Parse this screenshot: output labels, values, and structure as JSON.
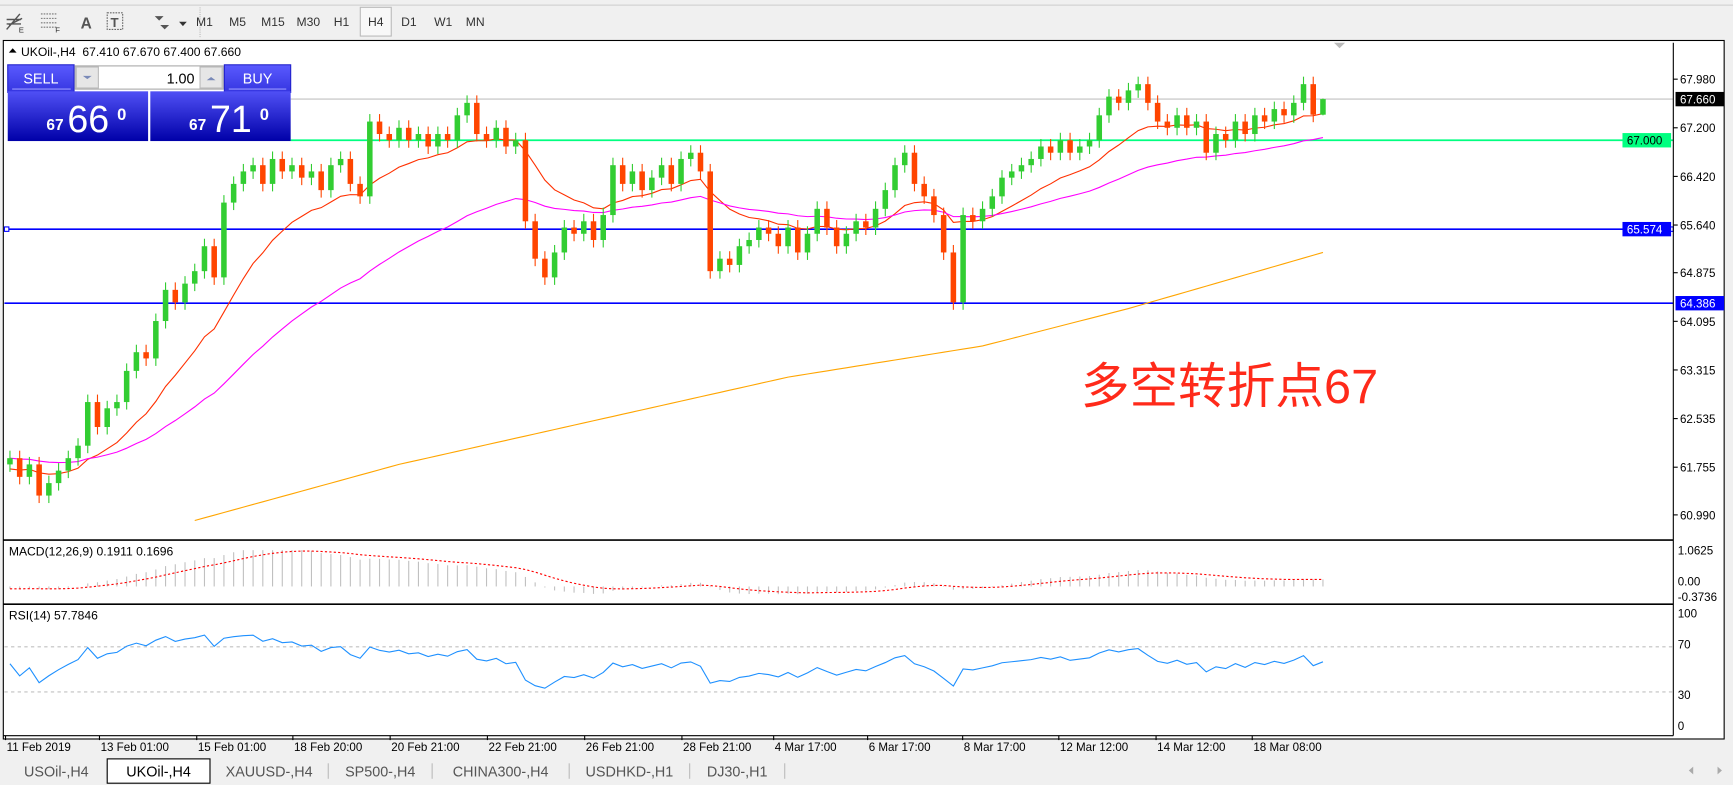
{
  "toolbar": {
    "tools": [
      {
        "icon": "period-separator-icon"
      },
      {
        "icon": "fibonacci-icon"
      },
      {
        "icon": "text-icon",
        "label": "A"
      },
      {
        "icon": "text-label-icon",
        "label": "T"
      },
      {
        "icon": "arrows-dropdown-icon"
      }
    ],
    "timeframes": [
      "M1",
      "M5",
      "M15",
      "M30",
      "H1",
      "H4",
      "D1",
      "W1",
      "MN"
    ],
    "active_timeframe": "H4"
  },
  "chart": {
    "header": "UKOil-,H4  67.410 67.670 67.400 67.660",
    "one_click": {
      "sell_label": "SELL",
      "buy_label": "BUY",
      "volume": "1.00",
      "sell_big": "67",
      "sell_main": "66",
      "sell_sup": "0",
      "buy_big": "67",
      "buy_main": "71",
      "buy_sup": "0"
    },
    "annotation": "多空转折点67",
    "price_axis": [
      "67.980",
      "67.200",
      "66.420",
      "65.640",
      "64.875",
      "64.095",
      "63.315",
      "62.535",
      "61.755",
      "60.990"
    ],
    "levels": {
      "bid": {
        "value": 67.66,
        "label": "67.660",
        "color": "#000000"
      },
      "pivot": {
        "value": 67.0,
        "label": "67.000",
        "color": "#00ff80"
      },
      "resist": {
        "value": 65.574,
        "label": "65.574",
        "color": "#0000ff"
      },
      "support": {
        "value": 64.386,
        "label": "64.386",
        "color": "#0000ff"
      }
    },
    "time_axis": [
      "11 Feb 2019",
      "13 Feb 01:00",
      "15 Feb 01:00",
      "18 Feb 20:00",
      "20 Feb 21:00",
      "22 Feb 21:00",
      "26 Feb 21:00",
      "28 Feb 21:00",
      "4 Mar 17:00",
      "6 Mar 17:00",
      "8 Mar 17:00",
      "12 Mar 12:00",
      "14 Mar 12:00",
      "18 Mar 08:00"
    ],
    "colors": {
      "bull": "#32cd32",
      "bear": "#ff4500",
      "ma_fast": "#ff3000",
      "ma_mid": "#ff00ff",
      "ma_slow": "#ffa500"
    }
  },
  "chart_data": {
    "type": "candlestick",
    "symbol": "UKOil-",
    "timeframe": "H4",
    "last_ohlc": [
      67.41,
      67.67,
      67.4,
      67.66
    ],
    "closes": [
      61.9,
      61.6,
      61.8,
      61.3,
      61.5,
      61.7,
      61.9,
      62.1,
      62.8,
      62.4,
      62.7,
      62.8,
      63.3,
      63.6,
      63.5,
      64.1,
      64.6,
      64.4,
      64.7,
      64.9,
      65.3,
      64.8,
      66.0,
      66.3,
      66.5,
      66.6,
      66.3,
      66.7,
      66.5,
      66.6,
      66.4,
      66.5,
      66.2,
      66.6,
      66.7,
      66.3,
      66.1,
      67.3,
      67.1,
      67.0,
      67.2,
      67.0,
      67.1,
      66.9,
      67.1,
      67.0,
      67.4,
      67.6,
      67.1,
      67.0,
      67.2,
      66.9,
      67.0,
      65.7,
      65.1,
      64.8,
      65.2,
      65.6,
      65.5,
      65.7,
      65.4,
      65.8,
      66.6,
      66.3,
      66.5,
      66.2,
      66.4,
      66.6,
      66.3,
      66.7,
      66.8,
      66.5,
      64.9,
      65.1,
      65.0,
      65.3,
      65.4,
      65.6,
      65.5,
      65.3,
      65.6,
      65.2,
      65.5,
      65.9,
      65.6,
      65.3,
      65.5,
      65.7,
      65.6,
      65.9,
      66.2,
      66.6,
      66.8,
      66.3,
      66.1,
      65.8,
      65.2,
      64.4,
      65.8,
      65.7,
      65.9,
      66.1,
      66.4,
      66.5,
      66.6,
      66.7,
      66.9,
      66.8,
      67.0,
      66.8,
      66.9,
      67.0,
      67.4,
      67.7,
      67.6,
      67.8,
      67.9,
      67.6,
      67.3,
      67.2,
      67.4,
      67.2,
      67.3,
      66.8,
      67.1,
      67.0,
      67.3,
      67.1,
      67.4,
      67.3,
      67.5,
      67.4,
      67.6,
      67.9,
      67.41,
      67.66
    ],
    "ma_slow": [
      [
        19,
        60.9
      ],
      [
        40,
        61.8
      ],
      [
        60,
        62.5
      ],
      [
        80,
        63.2
      ],
      [
        100,
        63.7
      ],
      [
        115,
        64.3
      ],
      [
        135,
        65.2
      ]
    ],
    "ylim": [
      60.6,
      68.4
    ],
    "macd": {
      "label": "MACD(12,26,9) 0.1911 0.1696",
      "axis": [
        "1.0625",
        "0.00",
        "-0.3736"
      ],
      "range": [
        -0.3736,
        1.0625
      ]
    },
    "rsi": {
      "label": "RSI(14) 57.7846",
      "axis": [
        "100",
        "70",
        "30",
        "0"
      ],
      "levels": [
        70,
        30
      ]
    }
  },
  "tabs": [
    "USOil-,H4",
    "UKOil-,H4",
    "XAUUSD-,H4",
    "SP500-,H4",
    "CHINA300-,H4",
    "USDHKD-,H1",
    "DJ30-,H1"
  ],
  "active_tab": "UKOil-,H4"
}
